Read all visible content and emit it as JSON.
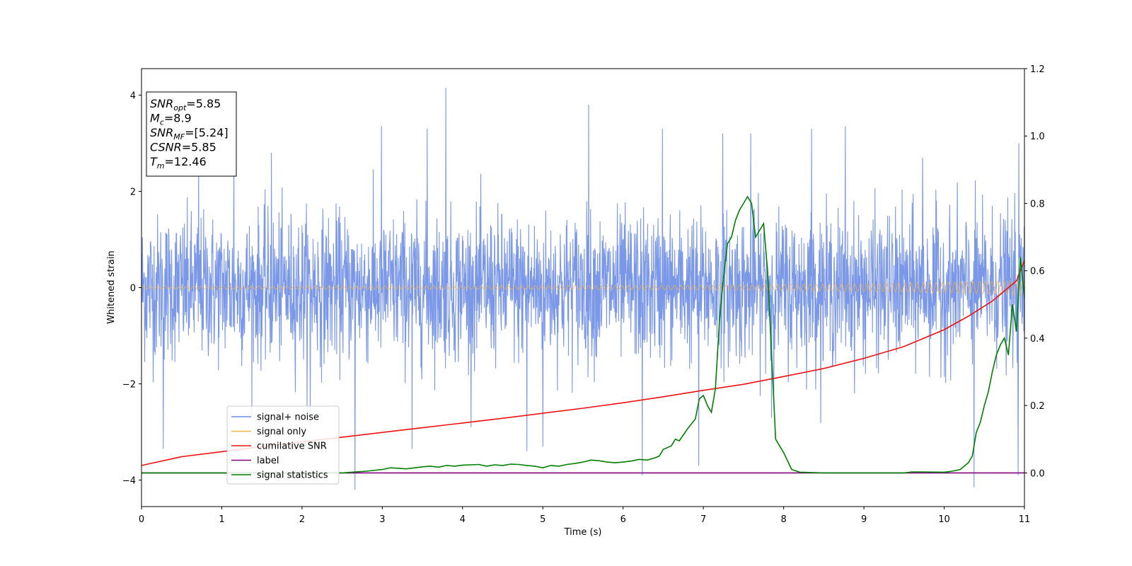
{
  "chart_data": {
    "type": "line",
    "xlabel": "Time (s)",
    "ylabel": "Whitened strain",
    "xlim": [
      0,
      11
    ],
    "ylim": [
      -4.55,
      4.55
    ],
    "y2lim": [
      -0.1,
      1.2
    ],
    "x_ticks": [
      "0",
      "1",
      "2",
      "3",
      "4",
      "5",
      "6",
      "7",
      "8",
      "9",
      "10",
      "11"
    ],
    "y_ticks": [
      "4",
      "2",
      "0",
      "−2",
      "−4"
    ],
    "y2_ticks": [
      "1.2",
      "1.0",
      "0.8",
      "0.6",
      "0.4",
      "0.2",
      "0.0"
    ],
    "grid": false,
    "legend_position": "lower-left",
    "annotation": {
      "lines": [
        {
          "main": "SNR",
          "sub": "opt",
          "rest": "=5.85"
        },
        {
          "main": "M",
          "sub": "c",
          "rest": "=8.9"
        },
        {
          "main": "SNR",
          "sub": "MF",
          "rest": "=[5.24]"
        },
        {
          "main": "CSNR",
          "sub": "",
          "rest": "=5.85"
        },
        {
          "main": "T",
          "sub": "m",
          "rest": "=12.46"
        }
      ]
    },
    "series": [
      {
        "name": "signal+ noise",
        "axis": "left",
        "color": "#6b8ce6",
        "noise_sigma": 0.75,
        "spikes": [
          [
            0.27,
            -3.35
          ],
          [
            0.71,
            2.75
          ],
          [
            1.15,
            2.7
          ],
          [
            1.62,
            2.8
          ],
          [
            2.1,
            -2.9
          ],
          [
            2.66,
            -4.2
          ],
          [
            2.99,
            3.35
          ],
          [
            3.37,
            -3.35
          ],
          [
            3.56,
            3.3
          ],
          [
            3.79,
            4.15
          ],
          [
            4.8,
            -3.4
          ],
          [
            5.0,
            -3.3
          ],
          [
            5.57,
            3.8
          ],
          [
            6.24,
            -3.9
          ],
          [
            6.49,
            3.3
          ],
          [
            6.94,
            -3.7
          ],
          [
            7.24,
            3.2
          ],
          [
            7.59,
            3.2
          ],
          [
            7.85,
            -2.7
          ],
          [
            8.35,
            3.3
          ],
          [
            8.77,
            3.35
          ],
          [
            9.73,
            2.7
          ],
          [
            10.37,
            -4.15
          ],
          [
            10.92,
            -3.9
          ],
          [
            10.93,
            3.0
          ]
        ]
      },
      {
        "name": "signal only",
        "axis": "left",
        "color": "#f5b24a",
        "amplitude": {
          "x": [
            0,
            4,
            7,
            9,
            10,
            10.7,
            11
          ],
          "y": [
            0.03,
            0.035,
            0.05,
            0.08,
            0.11,
            0.14,
            0.16
          ]
        }
      },
      {
        "name": "cumilative SNR",
        "axis": "right",
        "color": "#ee1111",
        "x": [
          0,
          0.5,
          1,
          1.5,
          2,
          2.5,
          3,
          3.5,
          4,
          4.5,
          5,
          5.5,
          6,
          6.5,
          7,
          7.5,
          8,
          8.5,
          9,
          9.5,
          10,
          10.3,
          10.6,
          10.9,
          11
        ],
        "y": [
          0.022,
          0.048,
          0.063,
          0.078,
          0.092,
          0.106,
          0.12,
          0.134,
          0.148,
          0.162,
          0.177,
          0.192,
          0.208,
          0.226,
          0.245,
          0.263,
          0.286,
          0.31,
          0.34,
          0.375,
          0.425,
          0.465,
          0.51,
          0.57,
          0.63
        ]
      },
      {
        "name": "label",
        "axis": "right",
        "color": "#800080",
        "x": [
          0,
          11
        ],
        "y": [
          0.0,
          0.0
        ]
      },
      {
        "name": "signal statistics",
        "axis": "right",
        "color": "#007f00",
        "x": [
          0,
          0.5,
          1,
          1.5,
          2,
          2.5,
          2.8,
          3.0,
          3.1,
          3.3,
          3.5,
          3.6,
          3.7,
          3.8,
          3.9,
          4.0,
          4.1,
          4.2,
          4.3,
          4.4,
          4.5,
          4.6,
          4.7,
          4.8,
          4.9,
          5.0,
          5.1,
          5.2,
          5.3,
          5.4,
          5.5,
          5.6,
          5.7,
          5.8,
          5.9,
          6.0,
          6.1,
          6.2,
          6.3,
          6.4,
          6.45,
          6.5,
          6.6,
          6.65,
          6.7,
          6.8,
          6.9,
          6.95,
          7.0,
          7.05,
          7.1,
          7.15,
          7.2,
          7.25,
          7.3,
          7.35,
          7.4,
          7.45,
          7.5,
          7.55,
          7.6,
          7.65,
          7.7,
          7.75,
          7.8,
          7.85,
          7.9,
          7.95,
          8.0,
          8.1,
          8.2,
          8.5,
          9.0,
          9.5,
          9.6,
          9.7,
          10.0,
          10.1,
          10.2,
          10.3,
          10.35,
          10.4,
          10.45,
          10.5,
          10.55,
          10.6,
          10.65,
          10.7,
          10.75,
          10.8,
          10.85,
          10.9,
          10.95,
          11.0
        ],
        "y": [
          0.0,
          0.0,
          0.0,
          0.0,
          0.0,
          0.0,
          0.005,
          0.01,
          0.015,
          0.012,
          0.018,
          0.02,
          0.017,
          0.022,
          0.02,
          0.023,
          0.024,
          0.025,
          0.02,
          0.024,
          0.022,
          0.026,
          0.025,
          0.022,
          0.02,
          0.015,
          0.022,
          0.02,
          0.025,
          0.028,
          0.032,
          0.038,
          0.036,
          0.032,
          0.03,
          0.032,
          0.035,
          0.04,
          0.038,
          0.045,
          0.05,
          0.07,
          0.08,
          0.1,
          0.095,
          0.13,
          0.16,
          0.22,
          0.23,
          0.2,
          0.18,
          0.25,
          0.45,
          0.58,
          0.68,
          0.7,
          0.75,
          0.78,
          0.8,
          0.82,
          0.8,
          0.7,
          0.72,
          0.74,
          0.6,
          0.35,
          0.1,
          0.08,
          0.06,
          0.01,
          0.002,
          0.0,
          0.0,
          0.0,
          0.003,
          0.003,
          0.002,
          0.005,
          0.01,
          0.03,
          0.05,
          0.12,
          0.15,
          0.2,
          0.24,
          0.3,
          0.35,
          0.38,
          0.4,
          0.35,
          0.5,
          0.42,
          0.64,
          0.52
        ]
      }
    ]
  }
}
